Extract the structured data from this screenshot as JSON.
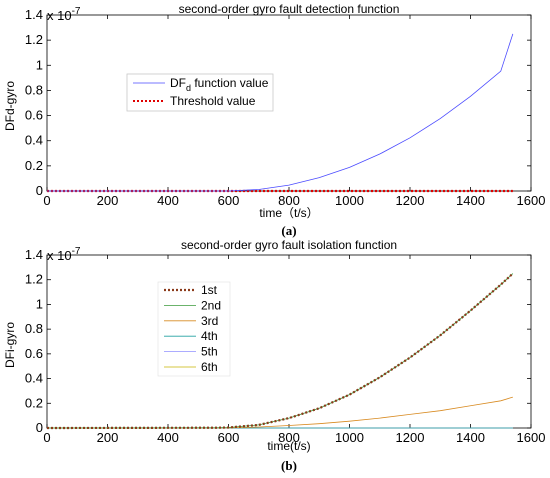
{
  "chart_data": [
    {
      "type": "line",
      "title": "second-order gyro fault detection function",
      "xlabel": "time（t/s）",
      "ylabel": "DFd-gyro",
      "exponent_label": "x 10",
      "exponent_power": "-7",
      "caption": "(a)",
      "xlim": [
        0,
        1600
      ],
      "ylim": [
        0,
        1.4
      ],
      "xticks": [
        "0",
        "200",
        "400",
        "600",
        "800",
        "1000",
        "1200",
        "1400",
        "1600"
      ],
      "yticks": [
        "0",
        "0.2",
        "0.4",
        "0.6",
        "0.8",
        "1",
        "1.2",
        "1.4"
      ],
      "grid": false,
      "legend_position": "upper-left",
      "legend": {
        "series1_main": "DF",
        "series1_sub": "d",
        "series1_rest": " function value",
        "series2": "Threshold value"
      },
      "series": [
        {
          "name": "DFd function value",
          "color": "#4a4aff",
          "style": "solid",
          "x": [
            0,
            600,
            700,
            800,
            900,
            1000,
            1100,
            1200,
            1300,
            1400,
            1500,
            1540
          ],
          "y": [
            0,
            0,
            0.012,
            0.047,
            0.106,
            0.188,
            0.294,
            0.423,
            0.576,
            0.753,
            0.953,
            1.25
          ]
        },
        {
          "name": "Threshold value",
          "color": "#e00000",
          "style": "dotted",
          "x": [
            0,
            1540
          ],
          "y": [
            0,
            0
          ]
        }
      ]
    },
    {
      "type": "line",
      "title": "second-order gyro fault isolation function",
      "xlabel": "time(t/s)",
      "ylabel": "DFi-gyro",
      "exponent_label": "x 10",
      "exponent_power": "-7",
      "caption": "(b)",
      "xlim": [
        0,
        1600
      ],
      "ylim": [
        0,
        1.4
      ],
      "xticks": [
        "0",
        "200",
        "400",
        "600",
        "800",
        "1000",
        "1200",
        "1400",
        "1600"
      ],
      "yticks": [
        "0",
        "0.2",
        "0.4",
        "0.6",
        "0.8",
        "1",
        "1.2",
        "1.4"
      ],
      "grid": false,
      "legend_position": "upper-left",
      "series": [
        {
          "name": "1st",
          "color": "#8b3a1a",
          "style": "dotted",
          "x": [
            0,
            560,
            600,
            700,
            800,
            900,
            1000,
            1100,
            1200,
            1300,
            1400,
            1500,
            1540
          ],
          "y": [
            0,
            0.002,
            0.004,
            0.025,
            0.08,
            0.16,
            0.27,
            0.41,
            0.57,
            0.75,
            0.95,
            1.16,
            1.25
          ]
        },
        {
          "name": "2nd",
          "color": "#3a9a3a",
          "style": "solid",
          "x": [
            0,
            560,
            600,
            700,
            800,
            900,
            1000,
            1100,
            1200,
            1300,
            1400,
            1500,
            1540
          ],
          "y": [
            0,
            0.002,
            0.004,
            0.025,
            0.08,
            0.16,
            0.27,
            0.41,
            0.57,
            0.75,
            0.95,
            1.16,
            1.25
          ]
        },
        {
          "name": "3rd",
          "color": "#d88a20",
          "style": "solid",
          "x": [
            0,
            600,
            700,
            800,
            900,
            1000,
            1100,
            1200,
            1300,
            1400,
            1500,
            1540
          ],
          "y": [
            0,
            0.001,
            0.008,
            0.02,
            0.035,
            0.055,
            0.08,
            0.11,
            0.14,
            0.18,
            0.22,
            0.25
          ]
        },
        {
          "name": "4th",
          "color": "#20a0a0",
          "style": "solid",
          "x": [
            0,
            1540
          ],
          "y": [
            0,
            0
          ]
        },
        {
          "name": "5th",
          "color": "#9090ff",
          "style": "solid",
          "x": [
            0,
            1540
          ],
          "y": [
            0,
            0
          ]
        },
        {
          "name": "6th",
          "color": "#c8b400",
          "style": "solid",
          "x": [
            0,
            1540
          ],
          "y": [
            0,
            0
          ]
        }
      ]
    }
  ]
}
